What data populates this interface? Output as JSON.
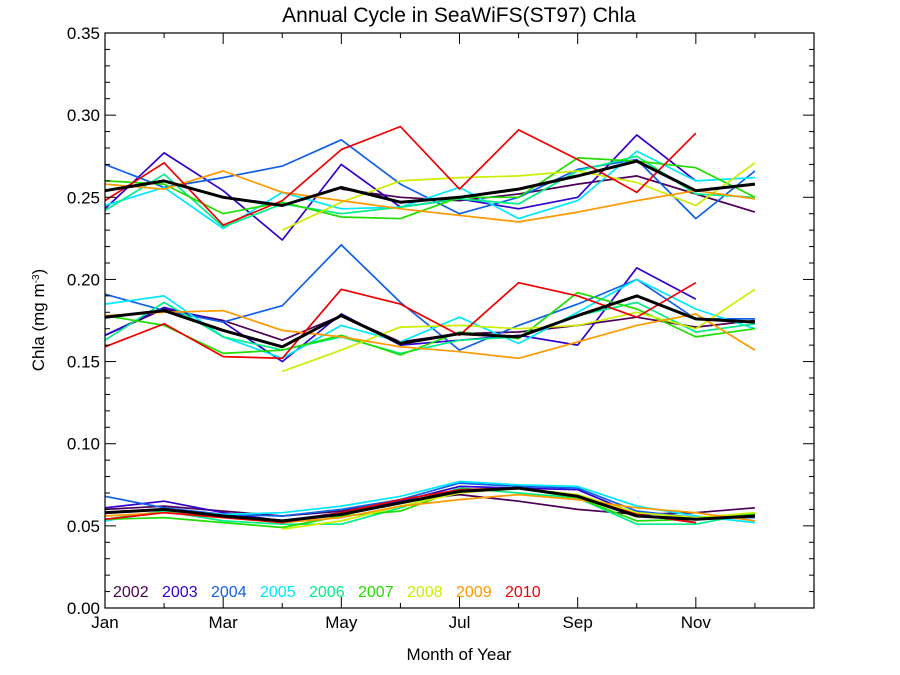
{
  "chart_data": {
    "type": "line",
    "title": "Annual Cycle in SeaWiFS(ST97) Chla",
    "xlabel": "Month of Year",
    "ylabel_main": "Chla (mg m",
    "ylabel_sup": "-3",
    "ylabel_close": ")",
    "xlim": [
      1,
      13
    ],
    "ylim": [
      0,
      0.35
    ],
    "x_tick_values": [
      1,
      3,
      5,
      7,
      9,
      11
    ],
    "x_tick_labels": [
      "Jan",
      "Mar",
      "May",
      "Jul",
      "Sep",
      "Nov"
    ],
    "y_tick_values": [
      0,
      0.05,
      0.1,
      0.15,
      0.2,
      0.25,
      0.3,
      0.35
    ],
    "y_tick_labels": [
      "0.00",
      "0.05",
      "0.10",
      "0.15",
      "0.20",
      "0.25",
      "0.30",
      "0.35"
    ],
    "grid": false,
    "legend_placement": "bottom-left",
    "x": [
      1,
      2,
      3,
      4,
      5,
      6,
      7,
      8,
      9,
      10,
      11,
      12
    ],
    "series": [
      {
        "name": "2002",
        "color": "#4b0055",
        "groups": [
          [
            null,
            null,
            null,
            null,
            0.255,
            0.25,
            0.248,
            0.252,
            0.258,
            0.263,
            0.252,
            0.241
          ],
          [
            0.166,
            0.182,
            0.175,
            0.163,
            0.178,
            0.162,
            0.167,
            0.168,
            0.172,
            0.177,
            0.171,
            0.175
          ],
          [
            0.06,
            0.062,
            0.059,
            0.056,
            0.059,
            0.065,
            0.069,
            0.065,
            0.06,
            0.057,
            0.058,
            0.061
          ]
        ]
      },
      {
        "name": "2003",
        "color": "#3300cc",
        "groups": [
          [
            0.243,
            0.277,
            0.254,
            0.224,
            0.27,
            0.244,
            0.249,
            0.243,
            0.25,
            0.288,
            0.26,
            null
          ],
          [
            0.166,
            0.183,
            0.174,
            0.15,
            0.179,
            0.16,
            0.163,
            0.166,
            0.16,
            0.207,
            0.188,
            null
          ],
          [
            0.061,
            0.065,
            0.058,
            0.053,
            0.058,
            0.065,
            0.074,
            0.073,
            0.072,
            0.057,
            0.052,
            null
          ]
        ]
      },
      {
        "name": "2004",
        "color": "#1060e8",
        "groups": [
          [
            0.27,
            0.256,
            0.262,
            0.269,
            0.285,
            0.258,
            0.24,
            0.25,
            0.267,
            0.273,
            0.237,
            0.266
          ],
          [
            0.191,
            0.181,
            0.174,
            0.184,
            0.221,
            0.186,
            0.157,
            0.172,
            0.185,
            0.2,
            0.176,
            0.176
          ],
          [
            0.068,
            0.061,
            0.057,
            0.056,
            0.06,
            0.066,
            0.076,
            0.074,
            0.073,
            0.059,
            0.055,
            0.055
          ]
        ]
      },
      {
        "name": "2005",
        "color": "#00e8ff",
        "groups": [
          [
            0.245,
            0.256,
            0.231,
            0.253,
            0.243,
            0.244,
            0.256,
            0.237,
            0.248,
            0.278,
            0.26,
            0.262
          ],
          [
            0.185,
            0.19,
            0.165,
            0.152,
            0.172,
            0.162,
            0.177,
            0.161,
            0.18,
            0.2,
            0.182,
            0.17
          ],
          [
            0.053,
            0.059,
            0.057,
            0.058,
            0.062,
            0.068,
            0.077,
            0.075,
            0.074,
            0.062,
            0.056,
            0.052
          ]
        ]
      },
      {
        "name": "2006",
        "color": "#00ee88",
        "groups": [
          [
            0.242,
            0.264,
            0.232,
            0.246,
            0.24,
            0.244,
            0.249,
            0.246,
            0.266,
            0.275,
            0.252,
            0.25
          ],
          [
            0.163,
            0.186,
            0.165,
            0.157,
            0.165,
            0.155,
            0.163,
            0.165,
            0.178,
            0.186,
            0.168,
            0.173
          ],
          [
            0.054,
            0.059,
            0.053,
            0.051,
            0.051,
            0.061,
            0.073,
            0.07,
            0.067,
            0.051,
            0.051,
            0.058
          ]
        ]
      },
      {
        "name": "2007",
        "color": "#22dd00",
        "groups": [
          [
            0.26,
            0.258,
            0.24,
            0.247,
            0.238,
            0.237,
            0.25,
            0.25,
            0.274,
            0.272,
            0.268,
            0.25
          ],
          [
            0.178,
            0.172,
            0.155,
            0.157,
            0.166,
            0.154,
            0.168,
            0.164,
            0.192,
            0.182,
            0.165,
            0.17
          ],
          [
            0.054,
            0.055,
            0.052,
            0.049,
            0.056,
            0.059,
            0.072,
            0.073,
            0.067,
            0.053,
            0.054,
            0.057
          ]
        ]
      },
      {
        "name": "2008",
        "color": "#ccee00",
        "groups": [
          [
            null,
            null,
            null,
            0.23,
            0.247,
            0.26,
            0.262,
            0.263,
            0.266,
            0.259,
            0.245,
            0.271
          ],
          [
            null,
            null,
            null,
            0.144,
            0.157,
            0.171,
            0.172,
            0.17,
            0.172,
            0.18,
            0.17,
            0.194
          ],
          [
            null,
            null,
            null,
            0.048,
            0.053,
            0.062,
            0.07,
            0.073,
            0.069,
            0.058,
            0.055,
            0.058
          ]
        ]
      },
      {
        "name": "2009",
        "color": "#ff9900",
        "groups": [
          [
            0.258,
            0.255,
            0.266,
            0.253,
            0.248,
            0.243,
            0.239,
            0.235,
            0.241,
            0.248,
            0.254,
            0.249
          ],
          [
            0.178,
            0.18,
            0.181,
            0.169,
            0.165,
            0.159,
            0.156,
            0.152,
            0.162,
            0.172,
            0.179,
            0.157
          ],
          [
            0.056,
            0.058,
            0.056,
            0.052,
            0.055,
            0.062,
            0.066,
            0.069,
            0.066,
            0.061,
            0.058,
            0.053
          ]
        ]
      },
      {
        "name": "2010",
        "color": "#ee0000",
        "groups": [
          [
            0.248,
            0.271,
            0.233,
            0.248,
            0.279,
            0.293,
            0.255,
            0.291,
            0.273,
            0.253,
            0.289,
            null
          ],
          [
            0.159,
            0.173,
            0.153,
            0.152,
            0.194,
            0.185,
            0.166,
            0.198,
            0.19,
            0.177,
            0.198,
            null
          ],
          [
            0.054,
            0.058,
            0.055,
            0.052,
            0.058,
            0.066,
            0.072,
            0.073,
            0.068,
            0.057,
            0.052,
            null
          ]
        ]
      },
      {
        "name": "",
        "color": "#000000",
        "groups": [
          [
            0.254,
            0.26,
            0.25,
            0.245,
            0.256,
            0.247,
            0.25,
            0.255,
            0.263,
            0.272,
            0.254,
            0.258
          ],
          [
            0.177,
            0.181,
            0.169,
            0.159,
            0.178,
            0.161,
            0.167,
            0.165,
            0.178,
            0.19,
            0.176,
            0.174
          ],
          [
            0.058,
            0.06,
            0.056,
            0.053,
            0.057,
            0.064,
            0.071,
            0.073,
            0.068,
            0.056,
            0.054,
            0.056
          ]
        ]
      }
    ]
  }
}
